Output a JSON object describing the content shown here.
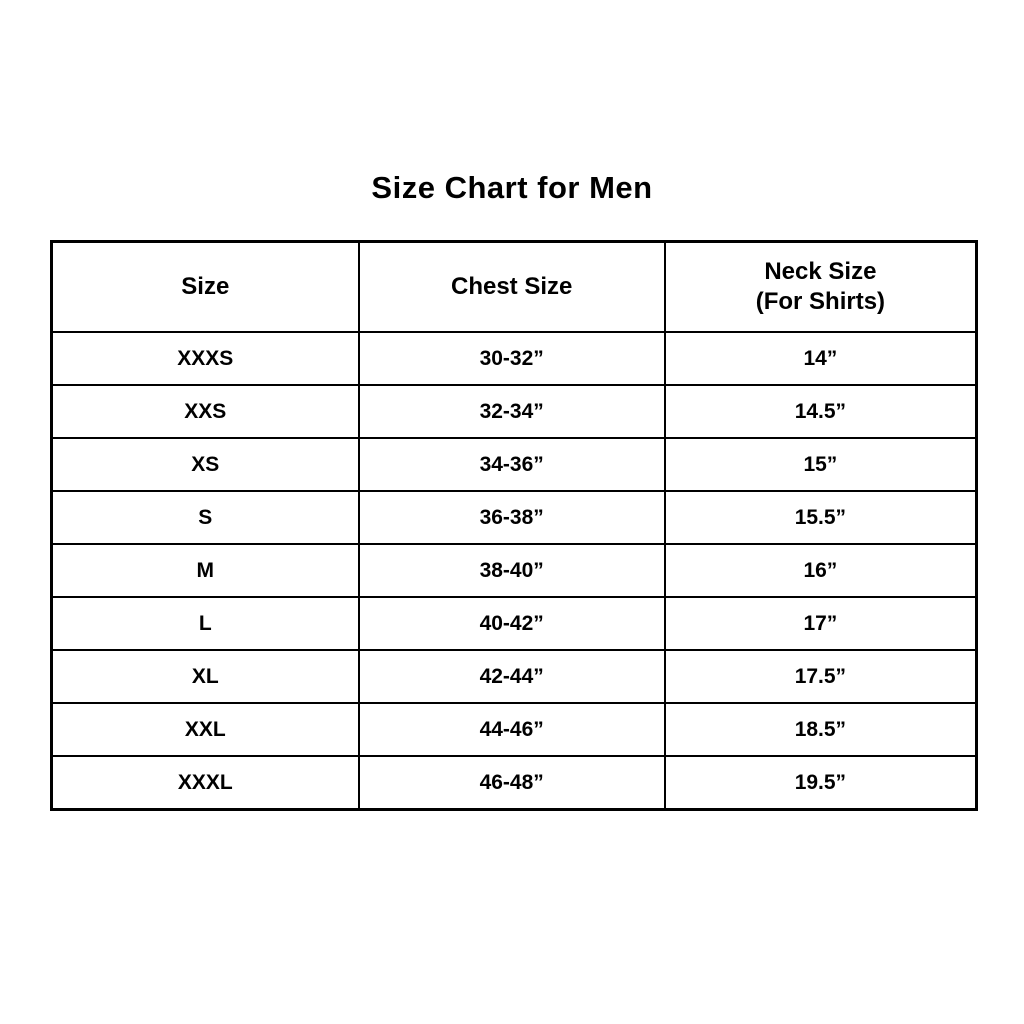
{
  "page": {
    "title": "Size Chart for Men",
    "background_color": "#ffffff",
    "text_color": "#000000",
    "border_color": "#000000"
  },
  "table": {
    "headers": [
      {
        "label": "Size"
      },
      {
        "label": "Chest Size"
      },
      {
        "label": "Neck Size",
        "sublabel": "(For Shirts)"
      }
    ],
    "rows": [
      {
        "size": "XXXS",
        "chest": "30-32”",
        "neck": "14”"
      },
      {
        "size": "XXS",
        "chest": "32-34”",
        "neck": "14.5”"
      },
      {
        "size": "XS",
        "chest": "34-36”",
        "neck": "15”"
      },
      {
        "size": "S",
        "chest": "36-38”",
        "neck": "15.5”"
      },
      {
        "size": "M",
        "chest": "38-40”",
        "neck": "16”"
      },
      {
        "size": "L",
        "chest": "40-42”",
        "neck": "17”"
      },
      {
        "size": "XL",
        "chest": "42-44”",
        "neck": "17.5”"
      },
      {
        "size": "XXL",
        "chest": "44-46”",
        "neck": "18.5”"
      },
      {
        "size": "XXXL",
        "chest": "46-48”",
        "neck": "19.5”"
      }
    ]
  },
  "chart_data": {
    "type": "table",
    "title": "Size Chart for Men",
    "columns": [
      "Size",
      "Chest Size",
      "Neck Size (For Shirts)"
    ],
    "rows": [
      [
        "XXXS",
        "30-32”",
        "14”"
      ],
      [
        "XXS",
        "32-34”",
        "14.5”"
      ],
      [
        "XS",
        "34-36”",
        "15”"
      ],
      [
        "S",
        "36-38”",
        "15.5”"
      ],
      [
        "M",
        "38-40”",
        "16”"
      ],
      [
        "L",
        "40-42”",
        "17”"
      ],
      [
        "XL",
        "42-44”",
        "17.5”"
      ],
      [
        "XXL",
        "44-46”",
        "18.5”"
      ],
      [
        "XXXL",
        "46-48”",
        "19.5”"
      ]
    ]
  }
}
